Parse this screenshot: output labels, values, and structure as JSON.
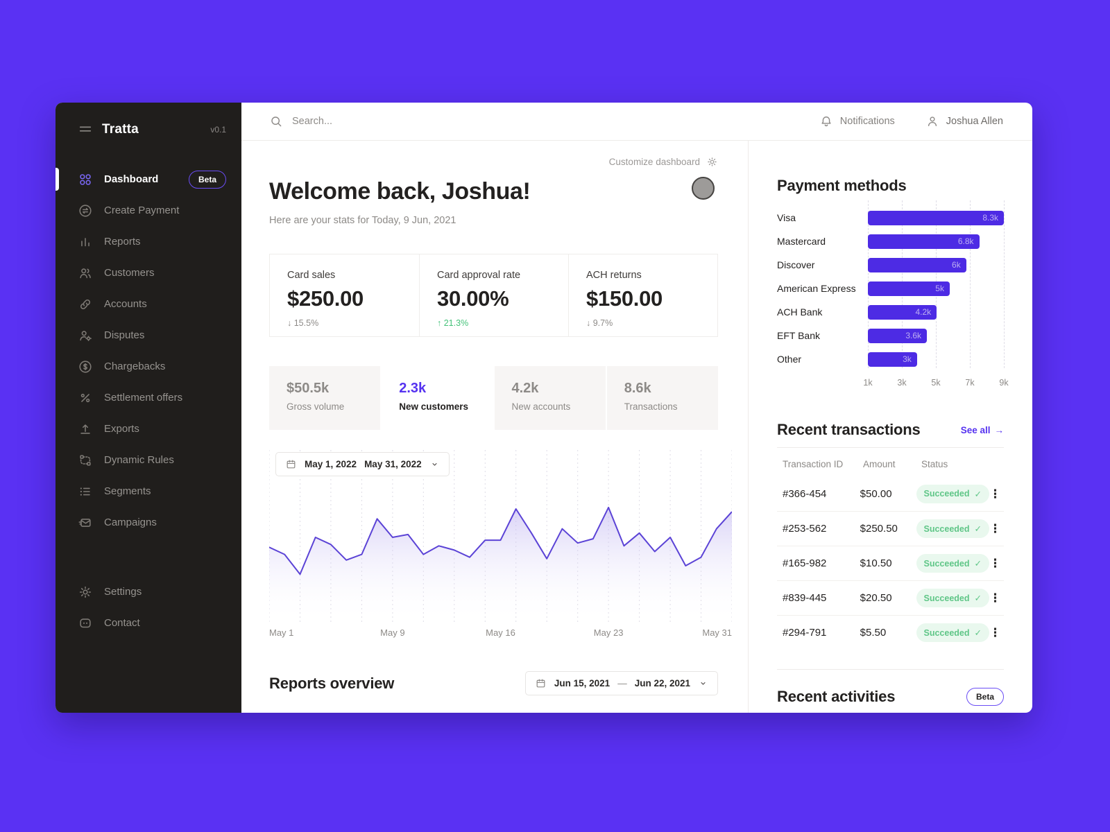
{
  "app": {
    "name": "Tratta",
    "version": "v0.1"
  },
  "topbar": {
    "search_placeholder": "Search...",
    "notifications_label": "Notifications",
    "user_name": "Joshua Allen"
  },
  "sidebar": {
    "items": [
      {
        "label": "Dashboard",
        "badge": "Beta",
        "active": true
      },
      {
        "label": "Create Payment"
      },
      {
        "label": "Reports"
      },
      {
        "label": "Customers"
      },
      {
        "label": "Accounts"
      },
      {
        "label": "Disputes"
      },
      {
        "label": "Chargebacks"
      },
      {
        "label": "Settlement offers"
      },
      {
        "label": "Exports"
      },
      {
        "label": "Dynamic Rules"
      },
      {
        "label": "Segments"
      },
      {
        "label": "Campaigns"
      }
    ],
    "bottom_items": [
      {
        "label": "Settings"
      },
      {
        "label": "Contact"
      }
    ]
  },
  "main": {
    "customize_label": "Customize dashboard",
    "welcome_title": "Welcome back, Joshua!",
    "welcome_subtitle": "Here are your stats for Today, 9 Jun, 2021",
    "stats": [
      {
        "label": "Card sales",
        "value": "$250.00",
        "arrow": "↓",
        "delta": "15.5%",
        "trend": "neutral"
      },
      {
        "label": "Card approval rate",
        "value": "30.00%",
        "arrow": "↑",
        "delta": "21.3%",
        "trend": "positive"
      },
      {
        "label": "ACH returns",
        "value": "$150.00",
        "arrow": "↓",
        "delta": "9.7%",
        "trend": "neutral"
      }
    ],
    "tabs": [
      {
        "value": "$50.5k",
        "label": "Gross volume",
        "active": false
      },
      {
        "value": "2.3k",
        "label": "New customers",
        "active": true
      },
      {
        "value": "4.2k",
        "label": "New accounts",
        "active": false
      },
      {
        "value": "8.6k",
        "label": "Transactions",
        "active": false
      }
    ],
    "date_range": {
      "start": "May 1, 2022",
      "end": "May 31, 2022"
    },
    "reports_overview": {
      "title": "Reports overview",
      "date_start": "Jun 15, 2021",
      "date_separator": "—",
      "date_end": "Jun 22, 2021"
    }
  },
  "right_panel": {
    "payment_methods_title": "Payment methods",
    "transactions": {
      "title": "Recent transactions",
      "see_all_label": "See all",
      "columns": [
        "Transaction ID",
        "Amount",
        "Status"
      ],
      "rows": [
        {
          "id": "#366-454",
          "amount": "$50.00",
          "status": "Succeeded"
        },
        {
          "id": "#253-562",
          "amount": "$250.50",
          "status": "Succeeded"
        },
        {
          "id": "#165-982",
          "amount": "$10.50",
          "status": "Succeeded"
        },
        {
          "id": "#839-445",
          "amount": "$20.50",
          "status": "Succeeded"
        },
        {
          "id": "#294-791",
          "amount": "$5.50",
          "status": "Succeeded"
        }
      ]
    },
    "activities": {
      "title": "Recent activities",
      "badge": "Beta"
    }
  },
  "glyphs": {
    "kebab": "⋮",
    "check": "✓",
    "arrow_right": "→"
  },
  "colors": {
    "background": "#5A31F3",
    "sidebar": "#201E1C",
    "accent": "#5532F0",
    "bar_fill": "#4D2BE4",
    "line_stroke": "#5B43D6",
    "positive_green": "#44C279",
    "badge_green_bg": "#E9F8EE",
    "badge_green_text": "#5FC687"
  },
  "chart_data": [
    {
      "id": "new-customers-trend",
      "type": "area",
      "title": "New customers trend (May 1 – May 31, 2022)",
      "xlabel": "",
      "ylabel": "",
      "x": [
        1,
        2,
        3,
        4,
        5,
        6,
        7,
        8,
        9,
        10,
        11,
        12,
        13,
        14,
        15,
        16,
        17,
        18,
        19,
        20,
        21,
        22,
        23,
        24,
        25,
        26,
        27,
        28,
        29,
        30,
        31
      ],
      "values": [
        53,
        48,
        34,
        60,
        55,
        44,
        48,
        73,
        60,
        62,
        48,
        54,
        51,
        46,
        58,
        58,
        80,
        63,
        45,
        66,
        56,
        59,
        81,
        54,
        63,
        50,
        60,
        40,
        46,
        66,
        78
      ],
      "ylim": [
        0,
        100
      ],
      "x_tick_labels": [
        "May 1",
        "May 9",
        "May 16",
        "May 23",
        "May 31"
      ],
      "x_tick_indices": [
        0,
        8,
        15,
        22,
        30
      ],
      "grid": "vertical-dashed",
      "legend": "none"
    },
    {
      "id": "payment-methods",
      "type": "bar",
      "orientation": "horizontal",
      "title": "Payment methods",
      "categories": [
        "Visa",
        "Mastercard",
        "Discover",
        "American Express",
        "ACH Bank",
        "EFT Bank",
        "Other"
      ],
      "values": [
        8300,
        6800,
        6000,
        5000,
        4200,
        3600,
        3000
      ],
      "value_labels": [
        "8.3k",
        "6.8k",
        "6k",
        "5k",
        "4.2k",
        "3.6k",
        "3k"
      ],
      "x_ticks": [
        "1k",
        "3k",
        "5k",
        "7k",
        "9k"
      ],
      "xlim": [
        0,
        8300
      ],
      "grid": "vertical-dashed",
      "legend": "none"
    }
  ]
}
